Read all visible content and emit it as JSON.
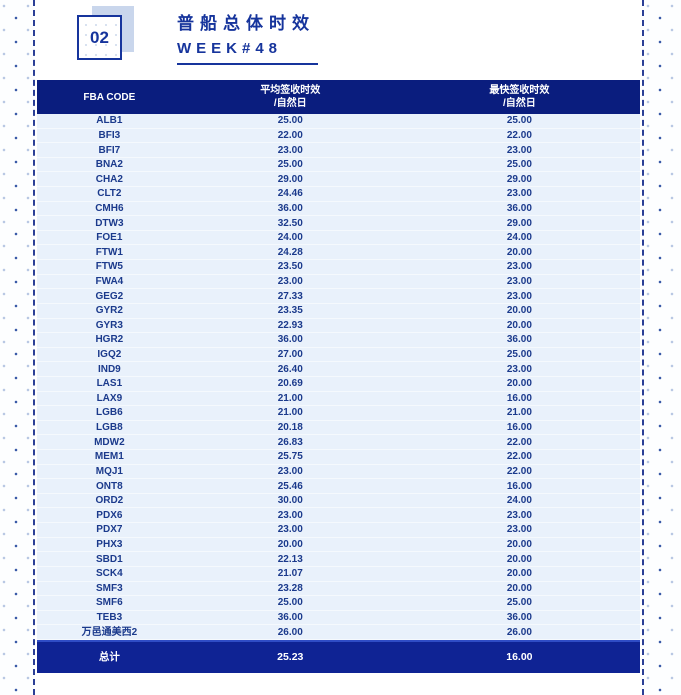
{
  "header": {
    "badge": "02",
    "title": "普船总体时效",
    "week": "WEEK#48"
  },
  "table": {
    "columns": [
      {
        "label": "FBA CODE",
        "sub": ""
      },
      {
        "label": "平均签收时效",
        "sub": "/自然日"
      },
      {
        "label": "最快签收时效",
        "sub": "/自然日"
      }
    ],
    "rows": [
      [
        "ALB1",
        "25.00",
        "25.00"
      ],
      [
        "BFI3",
        "22.00",
        "22.00"
      ],
      [
        "BFI7",
        "23.00",
        "23.00"
      ],
      [
        "BNA2",
        "25.00",
        "25.00"
      ],
      [
        "CHA2",
        "29.00",
        "29.00"
      ],
      [
        "CLT2",
        "24.46",
        "23.00"
      ],
      [
        "CMH6",
        "36.00",
        "36.00"
      ],
      [
        "DTW3",
        "32.50",
        "29.00"
      ],
      [
        "FOE1",
        "24.00",
        "24.00"
      ],
      [
        "FTW1",
        "24.28",
        "20.00"
      ],
      [
        "FTW5",
        "23.50",
        "23.00"
      ],
      [
        "FWA4",
        "23.00",
        "23.00"
      ],
      [
        "GEG2",
        "27.33",
        "23.00"
      ],
      [
        "GYR2",
        "23.35",
        "20.00"
      ],
      [
        "GYR3",
        "22.93",
        "20.00"
      ],
      [
        "HGR2",
        "36.00",
        "36.00"
      ],
      [
        "IGQ2",
        "27.00",
        "25.00"
      ],
      [
        "IND9",
        "26.40",
        "23.00"
      ],
      [
        "LAS1",
        "20.69",
        "20.00"
      ],
      [
        "LAX9",
        "21.00",
        "16.00"
      ],
      [
        "LGB6",
        "21.00",
        "21.00"
      ],
      [
        "LGB8",
        "20.18",
        "16.00"
      ],
      [
        "MDW2",
        "26.83",
        "22.00"
      ],
      [
        "MEM1",
        "25.75",
        "22.00"
      ],
      [
        "MQJ1",
        "23.00",
        "22.00"
      ],
      [
        "ONT8",
        "25.46",
        "16.00"
      ],
      [
        "ORD2",
        "30.00",
        "24.00"
      ],
      [
        "PDX6",
        "23.00",
        "23.00"
      ],
      [
        "PDX7",
        "23.00",
        "23.00"
      ],
      [
        "PHX3",
        "20.00",
        "20.00"
      ],
      [
        "SBD1",
        "22.13",
        "20.00"
      ],
      [
        "SCK4",
        "21.07",
        "20.00"
      ],
      [
        "SMF3",
        "23.28",
        "20.00"
      ],
      [
        "SMF6",
        "25.00",
        "25.00"
      ],
      [
        "TEB3",
        "36.00",
        "36.00"
      ],
      [
        "万邑通美西2",
        "26.00",
        "26.00"
      ]
    ],
    "total": {
      "label": "总计",
      "avg": "25.23",
      "fastest": "16.00"
    }
  },
  "colors": {
    "header_navy": "#0a1d7e",
    "total_navy": "#0f2394",
    "row_bg": "#e9f1fb",
    "text_navy": "#1b3a8c",
    "title_blue": "#16349c",
    "dash_navy": "#2b3f96",
    "badge_shadow": "#c9d6ec"
  }
}
